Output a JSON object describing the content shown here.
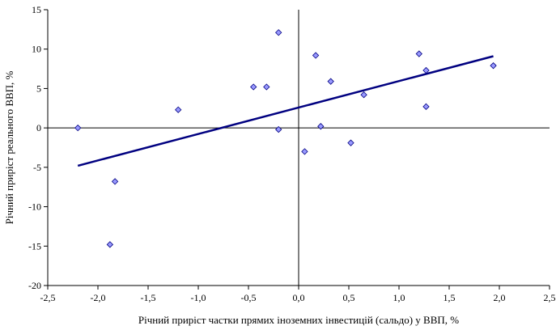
{
  "chart_data": {
    "type": "scatter",
    "title": "",
    "xlabel": "Річний приріст частки прямих іноземних інвестицій (сальдо) у ВВП, %",
    "ylabel": "Річний приріст реального ВВП, %",
    "xlim": [
      -2.5,
      2.5
    ],
    "ylim": [
      -20,
      15
    ],
    "x_ticks": [
      -2.5,
      -2.0,
      -1.5,
      -1.0,
      -0.5,
      0.0,
      0.5,
      1.0,
      1.5,
      2.0,
      2.5
    ],
    "x_tick_labels": [
      "-2,5",
      "-2,0",
      "-1,5",
      "-1,0",
      "-0,5",
      "0,0",
      "0,5",
      "1,0",
      "1,5",
      "2,0",
      "2,5"
    ],
    "y_ticks": [
      -20,
      -15,
      -10,
      -5,
      0,
      5,
      10,
      15
    ],
    "y_tick_labels": [
      "-20",
      "-15",
      "-10",
      "-5",
      "0",
      "5",
      "10",
      "15"
    ],
    "grid": false,
    "legend": "none",
    "series": [
      {
        "points": [
          {
            "x": -2.2,
            "y": 0.0
          },
          {
            "x": -1.88,
            "y": -14.8
          },
          {
            "x": -1.83,
            "y": -6.8
          },
          {
            "x": -1.2,
            "y": 2.3
          },
          {
            "x": -0.45,
            "y": 5.2
          },
          {
            "x": -0.32,
            "y": 5.2
          },
          {
            "x": -0.2,
            "y": 12.1
          },
          {
            "x": -0.2,
            "y": -0.2
          },
          {
            "x": 0.06,
            "y": -3.0
          },
          {
            "x": 0.17,
            "y": 9.2
          },
          {
            "x": 0.22,
            "y": 0.2
          },
          {
            "x": 0.32,
            "y": 5.9
          },
          {
            "x": 0.52,
            "y": -1.9
          },
          {
            "x": 0.65,
            "y": 4.2
          },
          {
            "x": 1.2,
            "y": 9.4
          },
          {
            "x": 1.27,
            "y": 7.3
          },
          {
            "x": 1.27,
            "y": 2.7
          },
          {
            "x": 1.94,
            "y": 7.9
          }
        ]
      }
    ],
    "trendline": {
      "x": [
        -2.2,
        1.94
      ],
      "y": [
        -4.8,
        9.1
      ]
    },
    "colors": {
      "marker_fill": "#9999ff",
      "marker_stroke": "#000080",
      "trendline": "#000080",
      "axis": "#000000"
    }
  }
}
